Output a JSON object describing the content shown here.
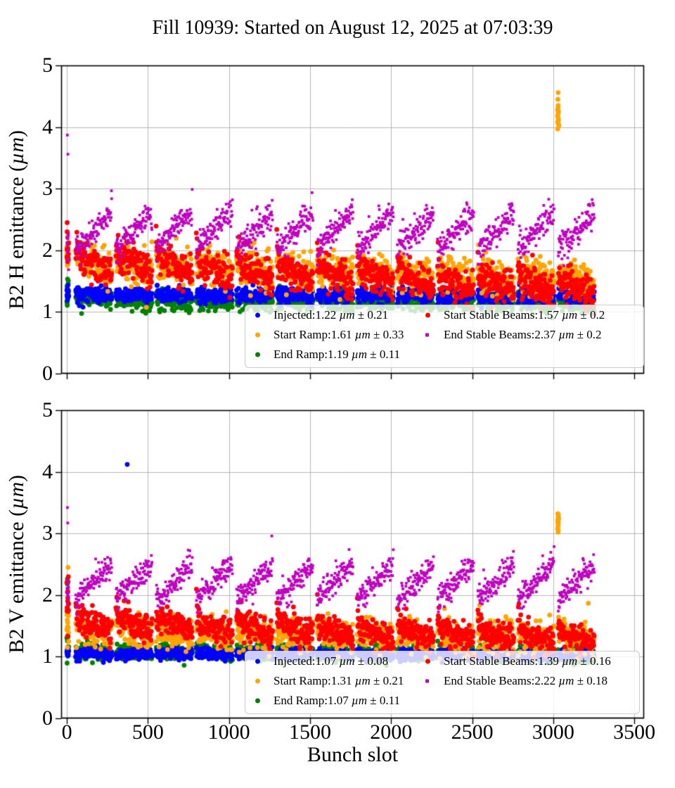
{
  "title": "Fill 10939: Started on August 12, 2025 at 07:03:39",
  "xlabel": "Bunch slot",
  "unit": "µm",
  "plusminus": "±",
  "grid_color": "#b4b4b4",
  "chart_data": [
    {
      "type": "scatter",
      "ylabel": "B2 H emittance (µm)",
      "xlabel": "Bunch slot",
      "xlim": [
        -35,
        3560
      ],
      "ylim": [
        0,
        5
      ],
      "xticks": [
        0,
        500,
        1000,
        1500,
        2000,
        2500,
        3000,
        3500
      ],
      "yticks": [
        0,
        1,
        2,
        3,
        4,
        5
      ],
      "x_tick_labels_visible": false,
      "grid": true,
      "legend_position": "lower right",
      "trains": {
        "count": 13,
        "first_slot": 55,
        "period": 248,
        "bunches": 100,
        "spacing": 2.24,
        "strip_bunches": 14
      },
      "legend": [
        {
          "name": "Injected",
          "mean": "1.22",
          "std": "0.21",
          "color": "#0000ff",
          "marker": "circle"
        },
        {
          "name": "Start Ramp",
          "mean": "1.61",
          "std": "0.33",
          "color": "#ffa500",
          "marker": "circle"
        },
        {
          "name": "End Ramp",
          "mean": "1.19",
          "std": "0.11",
          "color": "#008000",
          "marker": "circle"
        },
        {
          "name": "Start Stable Beams",
          "mean": "1.57",
          "std": "0.2",
          "color": "#ff0000",
          "marker": "circle"
        },
        {
          "name": "End Stable Beams",
          "mean": "2.37",
          "std": "0.2",
          "color": "#bf00bf",
          "marker": "square"
        }
      ],
      "series": [
        {
          "id": "end_ramp",
          "color": "#008000",
          "marker": "circle",
          "size": 3.4,
          "zorder": 1,
          "mean_start": 1.2,
          "mean_end": 1.14,
          "train_slope": -0.06,
          "noise": 0.075,
          "strip": {
            "mean": 1.3,
            "std": 0.12
          },
          "outliers": []
        },
        {
          "id": "injected",
          "color": "#0000ff",
          "marker": "circle",
          "size": 3.4,
          "zorder": 2,
          "mean_start": 1.28,
          "mean_end": 1.26,
          "train_slope": 0.0,
          "noise": 0.06,
          "strip": {
            "mean": 1.3,
            "std": 0.09
          },
          "outliers": []
        },
        {
          "id": "start_ramp",
          "color": "#ffa500",
          "marker": "circle",
          "size": 3.4,
          "zorder": 3,
          "mean_start": 1.78,
          "mean_end": 1.52,
          "train_slope": -0.18,
          "noise": 0.15,
          "strip": {
            "mean": 1.95,
            "std": 0.1
          },
          "outliers": [
            [
              3026,
              4.28
            ],
            [
              3030,
              4.22
            ],
            [
              3028,
              4.16
            ],
            [
              3033,
              4.12
            ],
            [
              3031,
              4.05
            ],
            [
              3027,
              4.18
            ],
            [
              3032,
              4.25
            ],
            [
              3029,
              4.1
            ],
            [
              3030,
              4.31
            ],
            [
              3034,
              4.02
            ],
            [
              3028,
              3.97
            ],
            [
              3031,
              4.35
            ],
            [
              3029,
              4.45
            ],
            [
              3030,
              4.56
            ],
            [
              3027,
              4.08
            ]
          ]
        },
        {
          "id": "start_stable",
          "color": "#ff0000",
          "marker": "circle",
          "size": 3.4,
          "zorder": 4,
          "mean_start": 1.82,
          "mean_end": 1.38,
          "train_slope": -0.3,
          "noise": 0.13,
          "spike": 0.5,
          "strip": {
            "mean": 1.95,
            "std": 0.13,
            "min": 1.65,
            "max": 2.3
          },
          "outliers": [
            [
              2,
              2.45
            ]
          ]
        },
        {
          "id": "end_stable",
          "color": "#bf00bf",
          "marker": "square",
          "size": 3.8,
          "zorder": 5,
          "mean_start": 2.33,
          "mean_end": 2.3,
          "train_slope": 0.62,
          "noise": 0.11,
          "tail": {
            "p": 0.05,
            "amp": 0.3
          },
          "strip": {
            "mean": 2.08,
            "std": 0.15
          },
          "outliers": [
            [
              4,
              3.87
            ],
            [
              6,
              3.56
            ]
          ]
        }
      ]
    },
    {
      "type": "scatter",
      "ylabel": "B2 V emittance (µm)",
      "xlabel": "Bunch slot",
      "xlim": [
        -35,
        3560
      ],
      "ylim": [
        0,
        5
      ],
      "xticks": [
        0,
        500,
        1000,
        1500,
        2000,
        2500,
        3000,
        3500
      ],
      "yticks": [
        0,
        1,
        2,
        3,
        4,
        5
      ],
      "x_tick_labels_visible": true,
      "grid": true,
      "legend_position": "lower right",
      "trains": {
        "count": 13,
        "first_slot": 55,
        "period": 248,
        "bunches": 100,
        "spacing": 2.24,
        "strip_bunches": 14
      },
      "legend": [
        {
          "name": "Injected",
          "mean": "1.07",
          "std": "0.08",
          "color": "#0000ff",
          "marker": "circle"
        },
        {
          "name": "Start Ramp",
          "mean": "1.31",
          "std": "0.21",
          "color": "#ffa500",
          "marker": "circle"
        },
        {
          "name": "End Ramp",
          "mean": "1.07",
          "std": "0.11",
          "color": "#008000",
          "marker": "circle"
        },
        {
          "name": "Start Stable Beams",
          "mean": "1.39",
          "std": "0.16",
          "color": "#ff0000",
          "marker": "circle"
        },
        {
          "name": "End Stable Beams",
          "mean": "2.22",
          "std": "0.18",
          "color": "#bf00bf",
          "marker": "square"
        }
      ],
      "series": [
        {
          "id": "end_ramp",
          "color": "#008000",
          "marker": "circle",
          "size": 3.4,
          "zorder": 1,
          "mean_start": 1.08,
          "mean_end": 1.04,
          "train_slope": -0.05,
          "noise": 0.065,
          "strip": {
            "mean": 1.12,
            "std": 0.12
          },
          "outliers": [
            [
              3,
              2.26
            ],
            [
              4,
              2.18
            ]
          ]
        },
        {
          "id": "injected",
          "color": "#0000ff",
          "marker": "circle",
          "size": 3.4,
          "zorder": 2,
          "mean_start": 1.05,
          "mean_end": 1.03,
          "train_slope": 0.0,
          "noise": 0.045,
          "strip": {
            "mean": 1.07,
            "std": 0.05
          },
          "outliers": [
            [
              372,
              4.12
            ]
          ]
        },
        {
          "id": "start_ramp",
          "color": "#ffa500",
          "marker": "circle",
          "size": 3.4,
          "zorder": 3,
          "mean_start": 1.42,
          "mean_end": 1.3,
          "train_slope": -0.12,
          "noise": 0.13,
          "strip": {
            "mean": 1.65,
            "std": 0.38,
            "min": 1.15,
            "max": 2.45
          },
          "outliers": [
            [
              3028,
              3.32
            ],
            [
              3031,
              3.27
            ],
            [
              3029,
              3.22
            ],
            [
              3032,
              3.18
            ],
            [
              3030,
              3.12
            ],
            [
              3027,
              3.08
            ],
            [
              3031,
              3.05
            ],
            [
              3029,
              3.15
            ],
            [
              3033,
              3.24
            ],
            [
              3030,
              3.02
            ],
            [
              3028,
              3.19
            ],
            [
              3032,
              3.3
            ]
          ]
        },
        {
          "id": "start_stable",
          "color": "#ff0000",
          "marker": "circle",
          "size": 3.4,
          "zorder": 4,
          "mean_start": 1.55,
          "mean_end": 1.3,
          "train_slope": -0.22,
          "noise": 0.11,
          "spike": 0.55,
          "strip": {
            "mean": 1.8,
            "std": 0.3,
            "min": 1.3,
            "max": 2.7
          },
          "outliers": []
        },
        {
          "id": "end_stable",
          "color": "#bf00bf",
          "marker": "square",
          "size": 3.8,
          "zorder": 5,
          "mean_start": 2.22,
          "mean_end": 2.2,
          "train_slope": 0.58,
          "noise": 0.1,
          "tail": {
            "p": 0.05,
            "amp": 0.28
          },
          "strip": {
            "mean": 2.05,
            "std": 0.12
          },
          "outliers": [
            [
              4,
              3.42
            ],
            [
              5,
              3.17
            ]
          ]
        }
      ]
    }
  ]
}
